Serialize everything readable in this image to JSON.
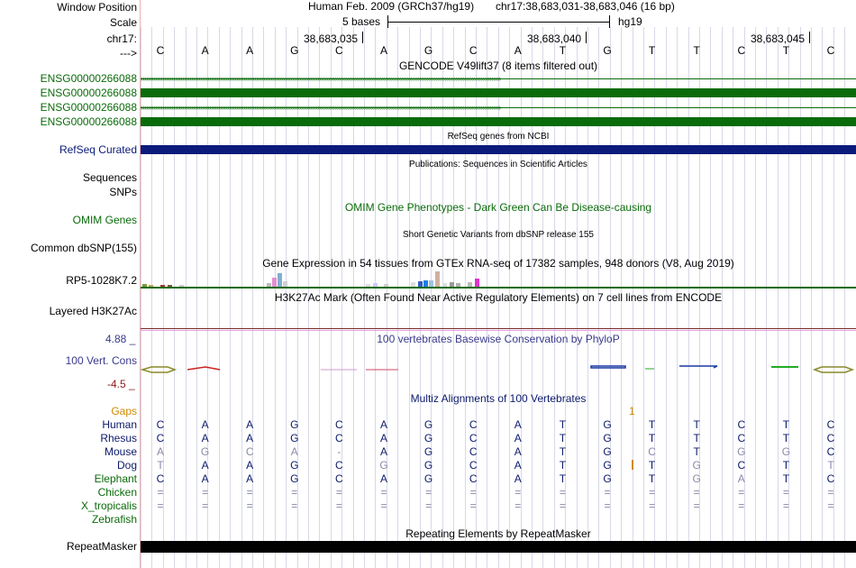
{
  "header": {
    "window_position_label": "Window Position",
    "assembly": "Human Feb. 2009 (GRCh37/hg19)",
    "position": "chr17:38,683,031-38,683,046 (16 bp)",
    "scale_label": "Scale",
    "scale_value": "5 bases",
    "scale_db": "hg19",
    "chrom_label": "chr17:",
    "coord_1": "38,683,035",
    "coord_2": "38,683,040",
    "coord_3": "38,683,045",
    "strand_label": "--->",
    "bases": [
      "C",
      "A",
      "A",
      "G",
      "C",
      "A",
      "G",
      "C",
      "A",
      "T",
      "G",
      "T",
      "T",
      "C",
      "T",
      "C"
    ]
  },
  "tracks": {
    "gencode_title": "GENCODE V49lift37 (8 items filtered out)",
    "gencode_items": [
      "ENSG00000266088",
      "ENSG00000266088",
      "ENSG00000266088",
      "ENSG00000266088"
    ],
    "refseq_title": "RefSeq genes from NCBI",
    "refseq_label": "RefSeq Curated",
    "publications_title": "Publications: Sequences in Scientific Articles",
    "sequences_label": "Sequences",
    "snps_label": "SNPs",
    "omim_title": "OMIM Gene Phenotypes - Dark Green Can Be Disease-causing",
    "omim_label": "OMIM Genes",
    "dbsnp_title": "Short Genetic Variants from dbSNP release 155",
    "dbsnp_label": "Common dbSNP(155)",
    "gtex_title": "Gene Expression in 54 tissues from GTEx RNA-seq of 17382 samples, 948 donors (V8, Aug 2019)",
    "gtex_label": "RP5-1028K7.2",
    "h3k27ac_title": "H3K27Ac Mark (Often Found Near Active Regulatory Elements) on 7 cell lines from ENCODE",
    "h3k27ac_label": "Layered H3K27Ac",
    "phylop_title": "100 vertebrates Basewise Conservation by PhyloP",
    "phylop_label": "100 Vert. Cons",
    "phylop_max": "4.88 _",
    "phylop_min": "-4.5 _",
    "multiz_title": "Multiz Alignments of 100 Vertebrates",
    "gaps_label": "Gaps",
    "gap_count": "1",
    "repeat_title": "Repeating Elements by RepeatMasker",
    "repeat_label": "RepeatMasker"
  },
  "alignment": [
    {
      "species": "Human",
      "seq": [
        "C",
        "A",
        "A",
        "G",
        "C",
        "A",
        "G",
        "C",
        "A",
        "T",
        "G",
        "T",
        "T",
        "C",
        "T",
        "C"
      ]
    },
    {
      "species": "Rhesus",
      "seq": [
        "C",
        "A",
        "A",
        "G",
        "C",
        "A",
        "G",
        "C",
        "A",
        "T",
        "G",
        "T",
        "T",
        "C",
        "T",
        "C"
      ]
    },
    {
      "species": "Mouse",
      "seq": [
        "A",
        "G",
        "C",
        "A",
        "-",
        "A",
        "G",
        "C",
        "A",
        "T",
        "G",
        "C",
        "T",
        "G",
        "G",
        "C"
      ]
    },
    {
      "species": "Dog",
      "seq": [
        "T",
        "A",
        "A",
        "G",
        "C",
        "G",
        "G",
        "C",
        "A",
        "T",
        "G",
        "T",
        "G",
        "C",
        "T",
        "T"
      ]
    },
    {
      "species": "Elephant",
      "seq": [
        "C",
        "A",
        "A",
        "G",
        "C",
        "A",
        "G",
        "C",
        "A",
        "T",
        "G",
        "T",
        "G",
        "A",
        "T",
        "C"
      ]
    },
    {
      "species": "Chicken",
      "seq": [
        "=",
        "=",
        "=",
        "=",
        "=",
        "=",
        "=",
        "=",
        "=",
        "=",
        "=",
        "=",
        "=",
        "=",
        "=",
        "="
      ]
    },
    {
      "species": "X_tropicalis",
      "seq": [
        "=",
        "=",
        "=",
        "=",
        "=",
        "=",
        "=",
        "=",
        "=",
        "=",
        "=",
        "=",
        "=",
        "=",
        "=",
        "="
      ]
    },
    {
      "species": "Zebrafish",
      "seq": []
    }
  ],
  "colors": {
    "gencode": "#0a6b0a",
    "refseq": "#0c1a7a",
    "omim": "#0a6b0a",
    "phylop": "#3a3a8c",
    "phylop_min": "#8b1a1a",
    "multiz": "#0c1a6a",
    "gaps": "#d08a00",
    "repeat": "#000000"
  }
}
